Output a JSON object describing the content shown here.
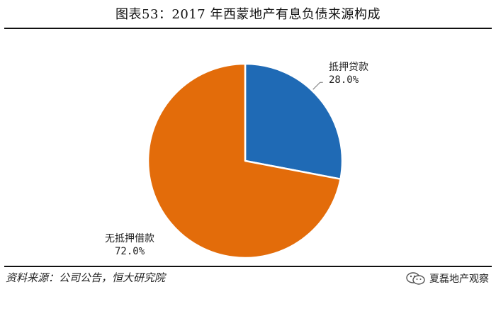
{
  "title": "图表53：2017 年西蒙地产有息负债来源构成",
  "chart_data": {
    "type": "pie",
    "slices": [
      {
        "label": "抵押贷款",
        "value": 28.0,
        "value_label": "28.0%",
        "color": "#1f6ab5"
      },
      {
        "label": "无抵押借款",
        "value": 72.0,
        "value_label": "72.0%",
        "color": "#e36c0a"
      }
    ],
    "start": "12 o'clock, clockwise"
  },
  "footer": {
    "source": "资料来源：公司公告，恒大研究院",
    "brand": "夏磊地产观察",
    "brand_icon": "wechat-icon"
  }
}
